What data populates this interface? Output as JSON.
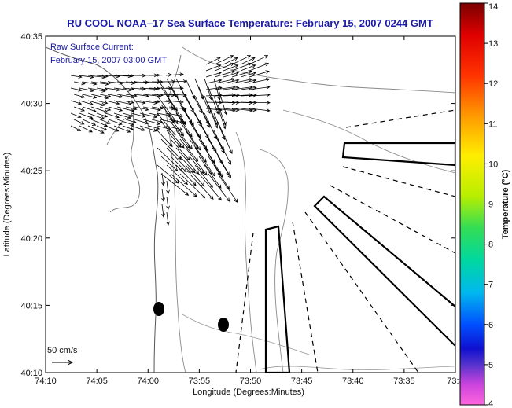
{
  "title": "RU COOL  NOAA–17  Sea Surface Temperature:  February 15, 2007 0244 GMT",
  "overlay": {
    "line1": "Raw Surface Current:",
    "line2": "February 15, 2007 03:00 GMT",
    "scale_label": "50 cm/s"
  },
  "axes": {
    "xlabel": "Longitude (Degrees:Minutes)",
    "ylabel": "Latitude (Degrees:Minutes)",
    "xticks": [
      "74:10",
      "74:05",
      "74:00",
      "73:55",
      "73:50",
      "73:45",
      "73:40",
      "73:35",
      "73:3"
    ],
    "yticks": [
      "40:35",
      "40:30",
      "40:25",
      "40:20",
      "40:15",
      "40:10"
    ]
  },
  "colorbar": {
    "label": "Temperature (°C)",
    "ticks": [
      "14",
      "13",
      "12",
      "11",
      "10",
      "9",
      "8",
      "7",
      "6",
      "5",
      "4"
    ]
  }
}
